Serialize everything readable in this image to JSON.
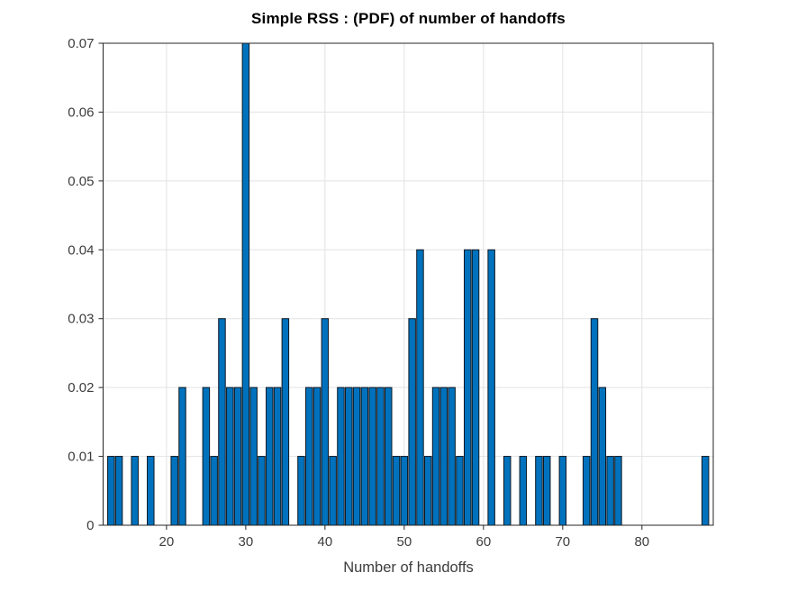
{
  "chart_data": {
    "type": "bar",
    "title": "Simple RSS : (PDF) of number of handoffs",
    "xlabel": "Number of handoffs",
    "ylabel": "",
    "xlim": [
      12,
      89
    ],
    "ylim": [
      0,
      0.07
    ],
    "grid": true,
    "legend": "none",
    "x": [
      13,
      14,
      16,
      18,
      21,
      22,
      25,
      26,
      27,
      28,
      29,
      30,
      31,
      32,
      33,
      34,
      35,
      37,
      38,
      39,
      40,
      41,
      42,
      43,
      44,
      45,
      46,
      47,
      48,
      49,
      50,
      51,
      52,
      53,
      54,
      55,
      56,
      57,
      58,
      59,
      61,
      63,
      65,
      67,
      68,
      70,
      73,
      74,
      75,
      76,
      77,
      88
    ],
    "y": [
      0.01,
      0.01,
      0.01,
      0.01,
      0.01,
      0.02,
      0.02,
      0.01,
      0.03,
      0.02,
      0.02,
      0.07,
      0.02,
      0.01,
      0.02,
      0.02,
      0.03,
      0.01,
      0.02,
      0.02,
      0.03,
      0.01,
      0.02,
      0.02,
      0.02,
      0.02,
      0.02,
      0.02,
      0.02,
      0.01,
      0.01,
      0.03,
      0.04,
      0.01,
      0.02,
      0.02,
      0.02,
      0.01,
      0.04,
      0.04,
      0.04,
      0.01,
      0.01,
      0.01,
      0.01,
      0.01,
      0.01,
      0.03,
      0.02,
      0.01,
      0.01,
      0.01
    ],
    "xticks": [
      {
        "v": 20,
        "label": "20"
      },
      {
        "v": 30,
        "label": "30"
      },
      {
        "v": 40,
        "label": "40"
      },
      {
        "v": 50,
        "label": "50"
      },
      {
        "v": 60,
        "label": "60"
      },
      {
        "v": 70,
        "label": "70"
      },
      {
        "v": 80,
        "label": "80"
      }
    ],
    "yticks": [
      {
        "v": 0,
        "label": "0"
      },
      {
        "v": 0.01,
        "label": "0.01"
      },
      {
        "v": 0.02,
        "label": "0.02"
      },
      {
        "v": 0.03,
        "label": "0.03"
      },
      {
        "v": 0.04,
        "label": "0.04"
      },
      {
        "v": 0.05,
        "label": "0.05"
      },
      {
        "v": 0.06,
        "label": "0.06"
      },
      {
        "v": 0.07,
        "label": "0.07"
      }
    ],
    "colors": {
      "bar_fill": "#0072BD",
      "bar_edge": "#0b1722",
      "axis": "#262626",
      "grid": "#e2e2e2",
      "tick_label": "#3d3d3d",
      "title": "#000000",
      "background": "#ffffff"
    }
  }
}
